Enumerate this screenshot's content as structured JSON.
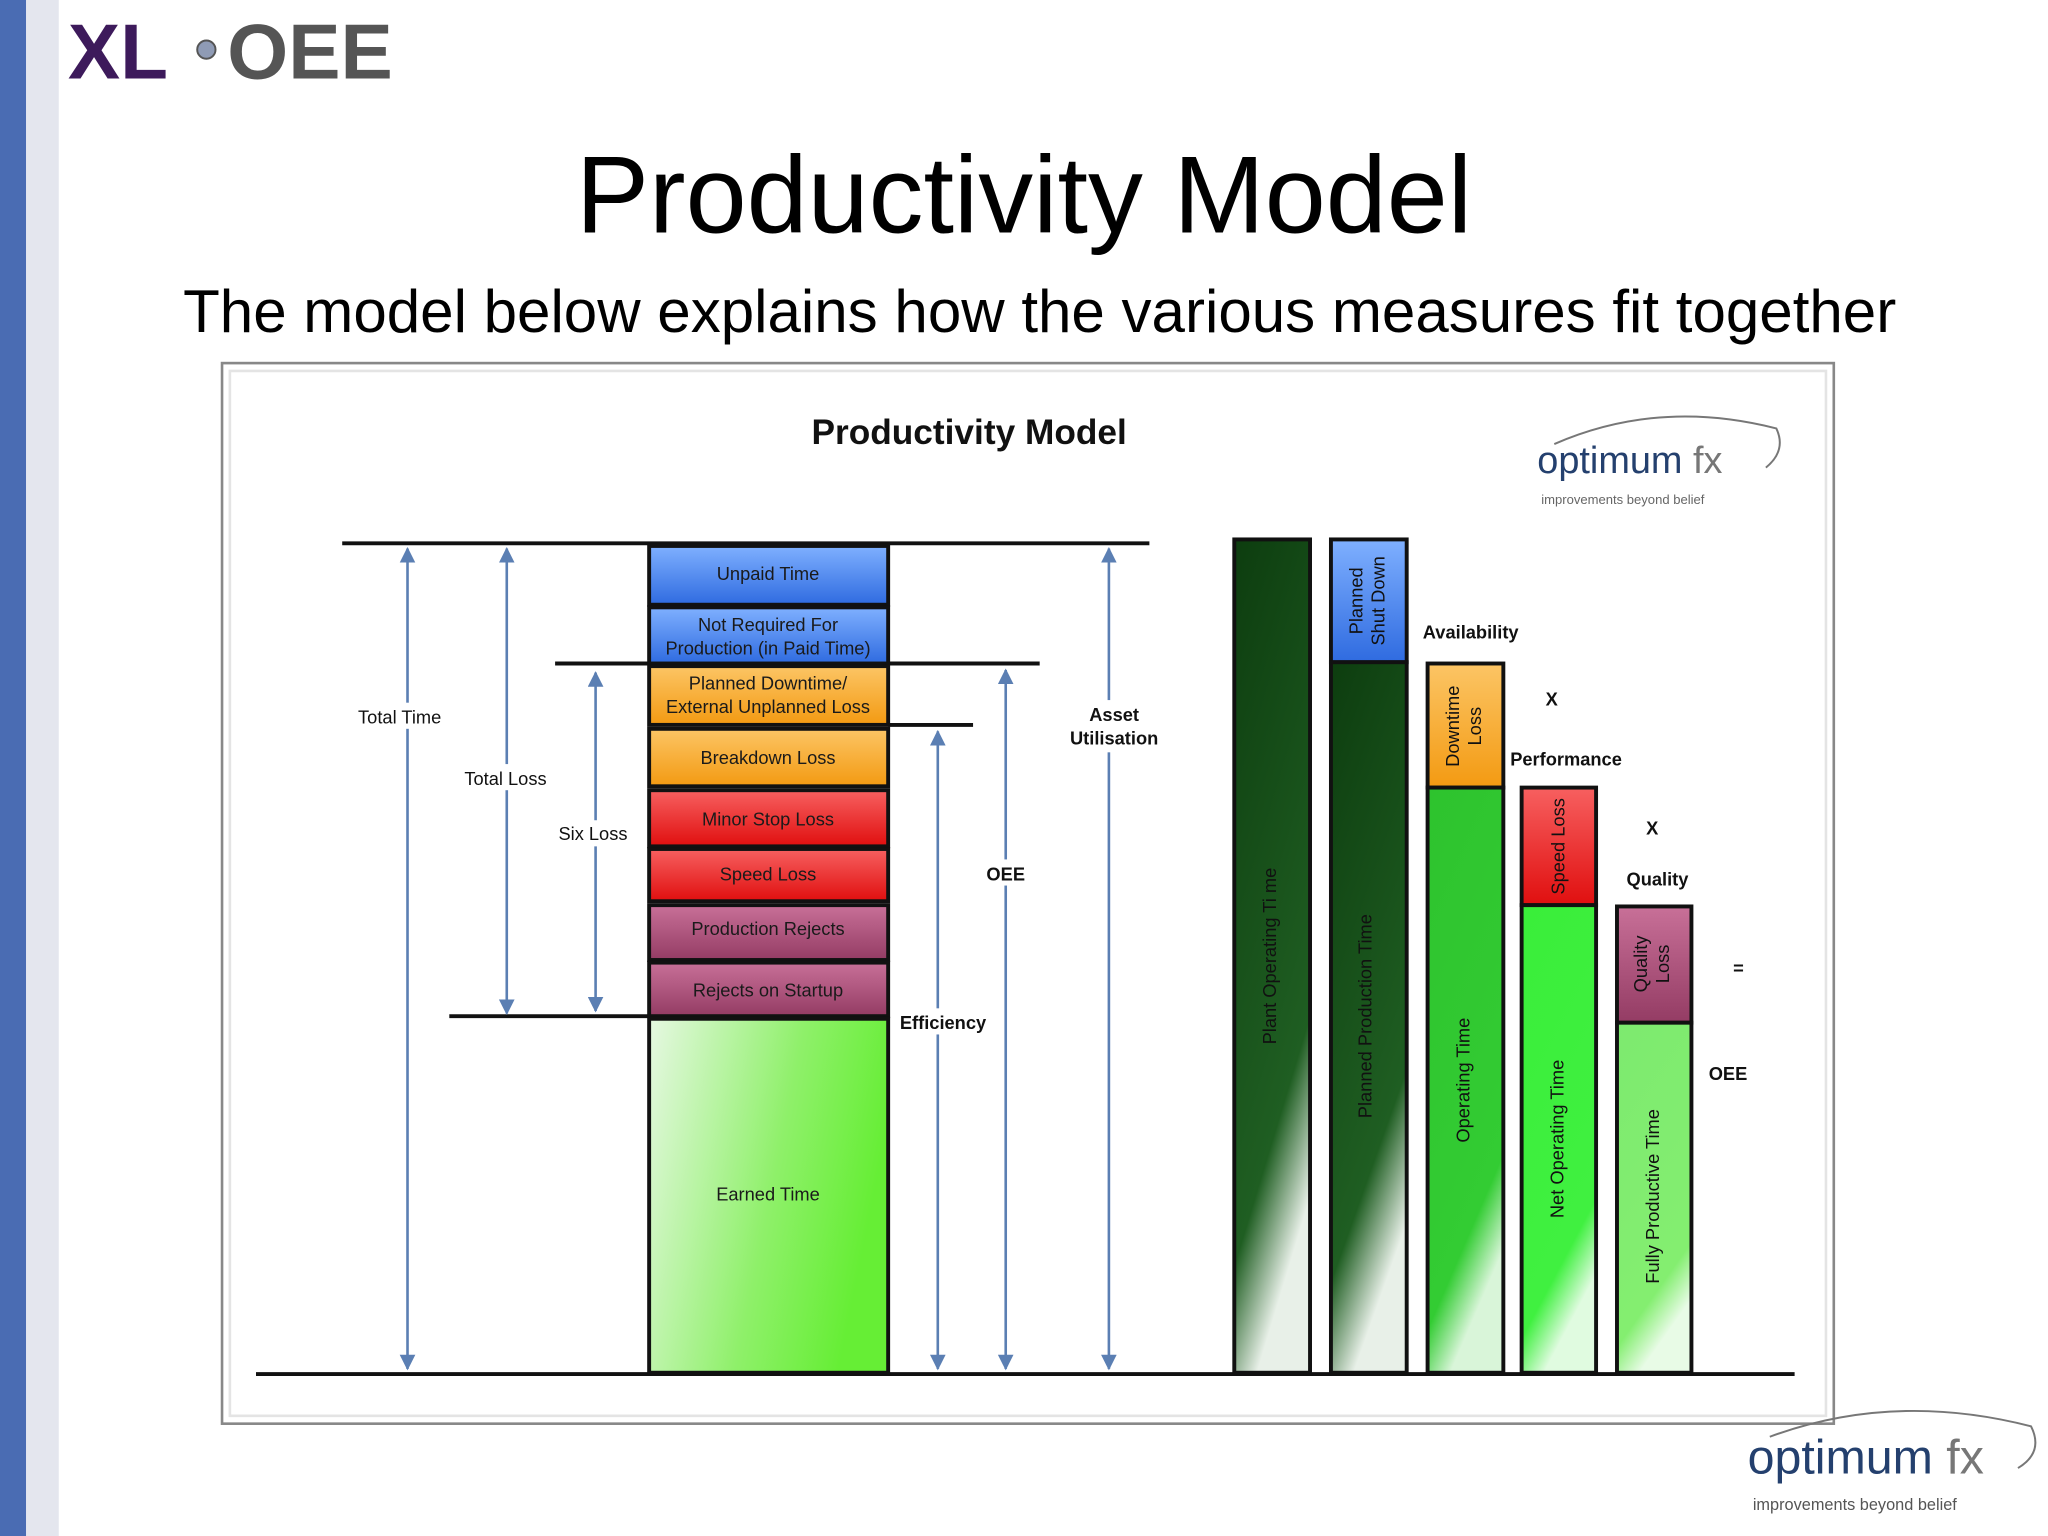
{
  "header": {
    "logo": [
      "XL",
      "OEE"
    ],
    "title": "Productivity Model",
    "subtitle": "The model below explains how the various measures fit together"
  },
  "diagram": {
    "title": "Productivity Model",
    "brand": {
      "name": [
        "optimum",
        "fx"
      ],
      "tagline": "improvements beyond belief"
    },
    "stack": [
      [
        "Unpaid Time"
      ],
      [
        "Not Required For",
        "Production (in Paid Time)"
      ],
      [
        "Planned Downtime/",
        "External Unplanned Loss"
      ],
      [
        "Breakdown Loss"
      ],
      [
        "Minor Stop Loss"
      ],
      [
        "Speed Loss"
      ],
      [
        "Production Rejects"
      ],
      [
        "Rejects on Startup"
      ],
      [
        "Earned Time"
      ]
    ],
    "measures": [
      [
        "Total Time"
      ],
      [
        "Total Loss"
      ],
      [
        "Six Loss"
      ],
      [
        "Efficiency"
      ],
      [
        "OEE"
      ],
      [
        "Asset",
        "Utilisation"
      ]
    ],
    "bars": [
      {
        "label": "Plant Operating Ti me"
      },
      {
        "loss": [
          "Planned",
          "Shut Down"
        ],
        "label": "Planned Production Time"
      },
      {
        "loss": [
          "Downtime",
          "Loss"
        ],
        "label": "Operating Time"
      },
      {
        "loss": [
          "Speed Loss"
        ],
        "label": "Net Operating Time"
      },
      {
        "loss": [
          "Quality",
          "Loss"
        ],
        "label": "Fully Productive Time"
      }
    ],
    "operators": [
      "Availability",
      "X",
      "Performance",
      "X",
      "Quality",
      "=",
      "OEE"
    ]
  },
  "footer": {
    "brand": {
      "name": [
        "optimum",
        "fx"
      ],
      "tagline": "improvements beyond belief"
    }
  }
}
